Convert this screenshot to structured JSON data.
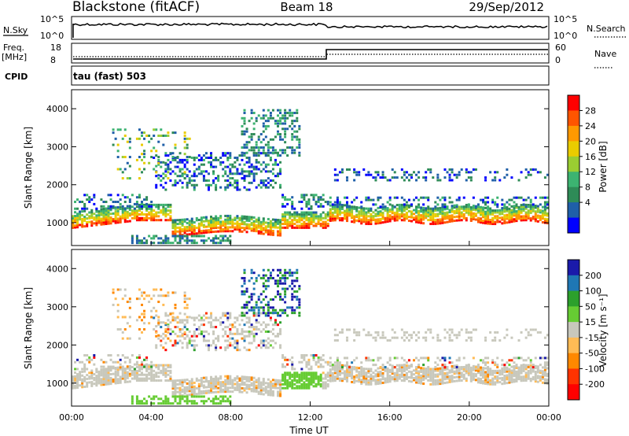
{
  "header": {
    "station": "Blackstone (fitACF)",
    "beam": "Beam 18",
    "date": "29/Sep/2012"
  },
  "top_panels": {
    "nsky_label": "N.Sky",
    "nsky_tick_top": "10^5",
    "nsky_tick_bottom": "10^0",
    "nsearch_label": "N.Search",
    "nsearch_tick_top": "10^5",
    "nsearch_tick_bottom": "10^0",
    "freq_label_line1": "Freq.",
    "freq_label_line2": "[MHz]",
    "freq_tick_top": "18",
    "freq_tick_bottom": "8",
    "nave_label": "Nave",
    "nave_tick_top": "60",
    "nave_tick_bottom": "0",
    "cpid_label": "CPID",
    "cpid_value": "tau (fast) 503"
  },
  "chart_data": [
    {
      "type": "heatmap",
      "panel": "power",
      "ylabel": "Slant Range [km]",
      "yticks": [
        "1000",
        "2000",
        "3000",
        "4000"
      ],
      "ylim": [
        400,
        4500
      ],
      "xlim_hours": [
        0,
        24
      ],
      "colorbar_label": "Power [dB]",
      "colorbar_ticks": [
        "28",
        "24",
        "20",
        "16",
        "12",
        "8",
        "4"
      ],
      "colorbar_colors": [
        "#ff0000",
        "#ff5500",
        "#ff9900",
        "#eacc00",
        "#9acd32",
        "#3cb371",
        "#2e8b57",
        "#1f5fa8",
        "#0000ff"
      ]
    },
    {
      "type": "heatmap",
      "panel": "velocity",
      "ylabel": "Slant Range [km]",
      "yticks": [
        "1000",
        "2000",
        "3000",
        "4000"
      ],
      "ylim": [
        400,
        4500
      ],
      "xlabel": "Time UT",
      "xticks": [
        "00:00",
        "04:00",
        "08:00",
        "12:00",
        "16:00",
        "20:00",
        "00:00"
      ],
      "xlim_hours": [
        0,
        24
      ],
      "colorbar_label": "Velocity [m s⁻¹]",
      "colorbar_ticks": [
        "200",
        "100",
        "50",
        "15",
        "-15",
        "-50",
        "-100",
        "-200"
      ],
      "colorbar_colors": [
        "#1a1aaa",
        "#1f77b4",
        "#2ca02c",
        "#66cc33",
        "#c8c8bc",
        "#ffbb55",
        "#ff8800",
        "#ff3300",
        "#ff0000"
      ]
    }
  ]
}
